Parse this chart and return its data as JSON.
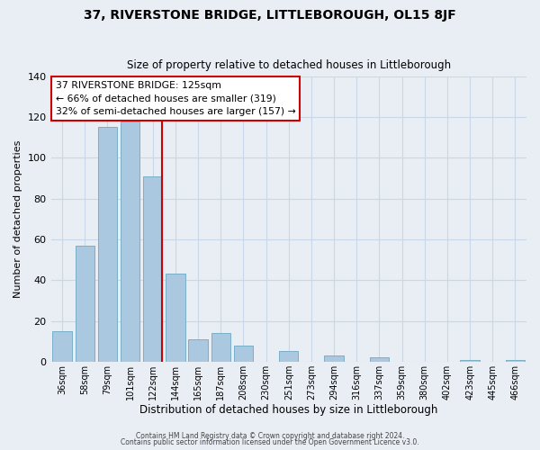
{
  "title": "37, RIVERSTONE BRIDGE, LITTLEBOROUGH, OL15 8JF",
  "subtitle": "Size of property relative to detached houses in Littleborough",
  "xlabel": "Distribution of detached houses by size in Littleborough",
  "ylabel": "Number of detached properties",
  "categories": [
    "36sqm",
    "58sqm",
    "79sqm",
    "101sqm",
    "122sqm",
    "144sqm",
    "165sqm",
    "187sqm",
    "208sqm",
    "230sqm",
    "251sqm",
    "273sqm",
    "294sqm",
    "316sqm",
    "337sqm",
    "359sqm",
    "380sqm",
    "402sqm",
    "423sqm",
    "445sqm",
    "466sqm"
  ],
  "values": [
    15,
    57,
    115,
    118,
    91,
    43,
    11,
    14,
    8,
    0,
    5,
    0,
    3,
    0,
    2,
    0,
    0,
    0,
    1,
    0,
    1
  ],
  "bar_color": "#aac9e0",
  "bar_edge_color": "#7aafc8",
  "highlight_line_color": "#cc0000",
  "annotation_title": "37 RIVERSTONE BRIDGE: 125sqm",
  "annotation_line1": "← 66% of detached houses are smaller (319)",
  "annotation_line2": "32% of semi-detached houses are larger (157) →",
  "annotation_box_edge": "#cc0000",
  "ylim": [
    0,
    140
  ],
  "yticks": [
    0,
    20,
    40,
    60,
    80,
    100,
    120,
    140
  ],
  "footer1": "Contains HM Land Registry data © Crown copyright and database right 2024.",
  "footer2": "Contains public sector information licensed under the Open Government Licence v3.0.",
  "background_color": "#e8eef4",
  "plot_background": "#e8eef4",
  "grid_color": "#c8d8e8"
}
